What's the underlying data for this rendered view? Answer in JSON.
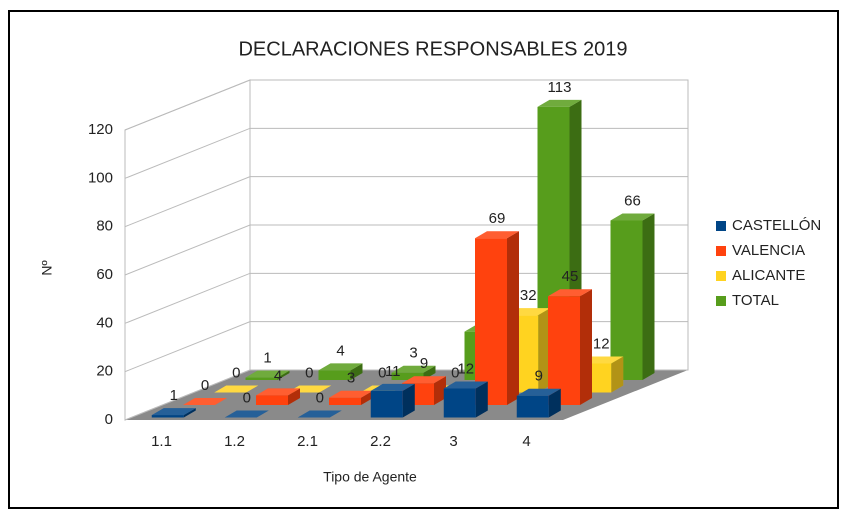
{
  "chart_data": {
    "type": "bar3d",
    "title": "DECLARACIONES RESPONSABLES 2019",
    "x_label": "Tipo de Agente",
    "y_label": "Nº",
    "categories": [
      "1.1",
      "1.2",
      "2.1",
      "2.2",
      "3",
      "4"
    ],
    "series": [
      {
        "name": "CASTELLÓN",
        "color": "#004586",
        "values": [
          1,
          0,
          0,
          11,
          12,
          9
        ]
      },
      {
        "name": "VALENCIA",
        "color": "#ff420e",
        "values": [
          0,
          4,
          3,
          9,
          69,
          45
        ]
      },
      {
        "name": "ALICANTE",
        "color": "#ffd320",
        "values": [
          0,
          0,
          0,
          0,
          32,
          12
        ]
      },
      {
        "name": "TOTAL",
        "color": "#579d1c",
        "values": [
          1,
          4,
          3,
          20,
          113,
          66
        ]
      }
    ],
    "ylim": [
      0,
      120
    ],
    "yticks": [
      0,
      20,
      40,
      60,
      80,
      100,
      120
    ],
    "grid": true,
    "legend": "right"
  }
}
